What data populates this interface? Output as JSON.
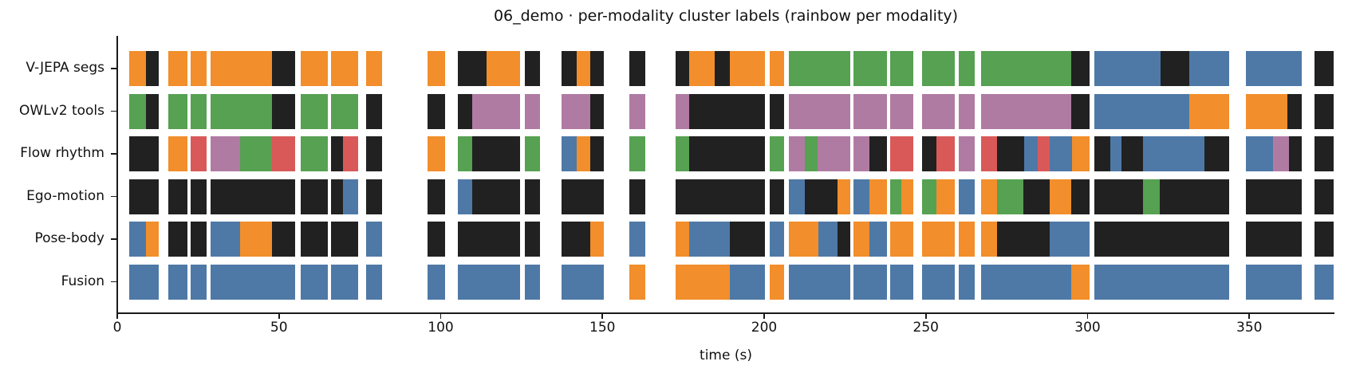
{
  "title": "06_demo · per-modality cluster labels (rainbow per modality)",
  "xlabel": "time (s)",
  "chart_data": {
    "type": "timeline",
    "xlim": [
      0,
      378
    ],
    "xticks": [
      0,
      50,
      100,
      150,
      200,
      250,
      300,
      350
    ],
    "grid": false,
    "palette": {
      "blue": "#4e79a7",
      "orange": "#f28e2b",
      "green": "#56a152",
      "red": "#d95959",
      "purple": "#b07ba3",
      "black": "#212121"
    },
    "rows": [
      {
        "label": "V-JEPA segs",
        "segments": [
          [
            3.6,
            8.9,
            "orange"
          ],
          [
            8.9,
            12.8,
            "black"
          ],
          [
            15.7,
            21.7,
            "orange"
          ],
          [
            22.7,
            27.7,
            "orange"
          ],
          [
            28.8,
            47.8,
            "orange"
          ],
          [
            47.8,
            55.0,
            "black"
          ],
          [
            56.6,
            65.1,
            "orange"
          ],
          [
            66.1,
            74.6,
            "orange"
          ],
          [
            76.9,
            81.9,
            "orange"
          ],
          [
            95.9,
            101.3,
            "orange"
          ],
          [
            105.2,
            114.3,
            "black"
          ],
          [
            114.3,
            124.6,
            "orange"
          ],
          [
            126.0,
            130.8,
            "black"
          ],
          [
            137.4,
            142.1,
            "black"
          ],
          [
            142.1,
            146.3,
            "orange"
          ],
          [
            146.3,
            150.4,
            "black"
          ],
          [
            158.3,
            163.2,
            "black"
          ],
          [
            172.6,
            176.9,
            "black"
          ],
          [
            176.9,
            184.7,
            "orange"
          ],
          [
            184.7,
            189.3,
            "black"
          ],
          [
            189.3,
            200.2,
            "orange"
          ],
          [
            201.7,
            206.2,
            "orange"
          ],
          [
            207.7,
            226.7,
            "green"
          ],
          [
            227.7,
            237.9,
            "green"
          ],
          [
            239.0,
            246.1,
            "green"
          ],
          [
            248.9,
            259.0,
            "green"
          ],
          [
            260.2,
            265.1,
            "green"
          ],
          [
            267.2,
            294.9,
            "green"
          ],
          [
            294.9,
            300.5,
            "black"
          ],
          [
            302.1,
            322.6,
            "blue"
          ],
          [
            322.6,
            331.4,
            "black"
          ],
          [
            331.4,
            343.8,
            "blue"
          ],
          [
            348.9,
            366.1,
            "blue"
          ],
          [
            370.2,
            376.0,
            "black"
          ]
        ]
      },
      {
        "label": "OWLv2 tools",
        "segments": [
          [
            3.6,
            8.9,
            "green"
          ],
          [
            8.9,
            12.8,
            "black"
          ],
          [
            15.7,
            21.7,
            "green"
          ],
          [
            22.7,
            27.7,
            "green"
          ],
          [
            28.8,
            47.8,
            "green"
          ],
          [
            47.8,
            55.0,
            "black"
          ],
          [
            56.6,
            65.1,
            "green"
          ],
          [
            66.1,
            74.6,
            "green"
          ],
          [
            76.9,
            81.9,
            "black"
          ],
          [
            95.9,
            101.3,
            "black"
          ],
          [
            105.2,
            109.8,
            "black"
          ],
          [
            109.8,
            124.6,
            "purple"
          ],
          [
            126.0,
            130.8,
            "purple"
          ],
          [
            137.4,
            146.3,
            "purple"
          ],
          [
            146.3,
            150.4,
            "black"
          ],
          [
            158.3,
            163.2,
            "purple"
          ],
          [
            172.6,
            176.9,
            "purple"
          ],
          [
            176.9,
            200.2,
            "black"
          ],
          [
            201.7,
            206.2,
            "black"
          ],
          [
            207.7,
            226.7,
            "purple"
          ],
          [
            227.7,
            237.9,
            "purple"
          ],
          [
            239.0,
            246.1,
            "purple"
          ],
          [
            248.9,
            259.0,
            "purple"
          ],
          [
            260.2,
            265.1,
            "purple"
          ],
          [
            267.2,
            294.9,
            "purple"
          ],
          [
            294.9,
            300.5,
            "black"
          ],
          [
            302.1,
            331.4,
            "blue"
          ],
          [
            331.4,
            343.8,
            "orange"
          ],
          [
            348.9,
            361.8,
            "orange"
          ],
          [
            361.8,
            366.1,
            "black"
          ],
          [
            370.2,
            376.0,
            "black"
          ]
        ]
      },
      {
        "label": "Flow rhythm",
        "segments": [
          [
            3.6,
            12.8,
            "black"
          ],
          [
            15.7,
            21.7,
            "orange"
          ],
          [
            22.7,
            27.7,
            "red"
          ],
          [
            28.8,
            38.0,
            "purple"
          ],
          [
            38.0,
            47.8,
            "green"
          ],
          [
            47.8,
            55.0,
            "red"
          ],
          [
            56.6,
            65.1,
            "green"
          ],
          [
            66.1,
            69.9,
            "black"
          ],
          [
            69.9,
            74.6,
            "red"
          ],
          [
            76.9,
            81.9,
            "black"
          ],
          [
            95.9,
            101.3,
            "orange"
          ],
          [
            105.2,
            109.8,
            "green"
          ],
          [
            109.8,
            124.6,
            "black"
          ],
          [
            126.0,
            130.8,
            "green"
          ],
          [
            137.4,
            142.1,
            "blue"
          ],
          [
            142.1,
            146.3,
            "orange"
          ],
          [
            146.3,
            150.4,
            "black"
          ],
          [
            158.3,
            163.2,
            "green"
          ],
          [
            172.6,
            176.9,
            "green"
          ],
          [
            176.9,
            200.2,
            "black"
          ],
          [
            201.7,
            206.2,
            "green"
          ],
          [
            207.7,
            212.7,
            "purple"
          ],
          [
            212.7,
            216.6,
            "green"
          ],
          [
            216.6,
            226.7,
            "purple"
          ],
          [
            227.7,
            232.5,
            "purple"
          ],
          [
            232.5,
            237.9,
            "black"
          ],
          [
            239.0,
            246.1,
            "red"
          ],
          [
            248.9,
            253.2,
            "black"
          ],
          [
            253.2,
            259.0,
            "red"
          ],
          [
            260.2,
            265.1,
            "purple"
          ],
          [
            267.2,
            272.1,
            "red"
          ],
          [
            272.1,
            280.4,
            "black"
          ],
          [
            280.4,
            284.7,
            "blue"
          ],
          [
            284.7,
            288.3,
            "red"
          ],
          [
            288.3,
            295.3,
            "blue"
          ],
          [
            295.3,
            300.5,
            "orange"
          ],
          [
            302.1,
            307.1,
            "black"
          ],
          [
            307.1,
            310.6,
            "blue"
          ],
          [
            310.6,
            317.2,
            "black"
          ],
          [
            317.2,
            336.1,
            "blue"
          ],
          [
            336.1,
            343.8,
            "black"
          ],
          [
            348.9,
            357.4,
            "blue"
          ],
          [
            357.4,
            362.3,
            "purple"
          ],
          [
            362.3,
            366.1,
            "black"
          ],
          [
            370.2,
            376.0,
            "black"
          ]
        ]
      },
      {
        "label": "Ego-motion",
        "segments": [
          [
            3.6,
            12.8,
            "black"
          ],
          [
            15.7,
            21.7,
            "black"
          ],
          [
            22.7,
            27.7,
            "black"
          ],
          [
            28.8,
            55.0,
            "black"
          ],
          [
            56.6,
            65.1,
            "black"
          ],
          [
            66.1,
            69.9,
            "black"
          ],
          [
            69.9,
            74.6,
            "blue"
          ],
          [
            76.9,
            81.9,
            "black"
          ],
          [
            95.9,
            101.3,
            "black"
          ],
          [
            105.2,
            109.8,
            "blue"
          ],
          [
            109.8,
            124.6,
            "black"
          ],
          [
            126.0,
            130.8,
            "black"
          ],
          [
            137.4,
            150.4,
            "black"
          ],
          [
            158.3,
            163.2,
            "black"
          ],
          [
            172.6,
            200.2,
            "black"
          ],
          [
            201.7,
            206.2,
            "black"
          ],
          [
            207.7,
            212.7,
            "blue"
          ],
          [
            212.7,
            222.6,
            "black"
          ],
          [
            222.6,
            226.7,
            "orange"
          ],
          [
            227.7,
            232.5,
            "blue"
          ],
          [
            232.5,
            237.9,
            "orange"
          ],
          [
            239.0,
            242.5,
            "green"
          ],
          [
            242.5,
            246.1,
            "orange"
          ],
          [
            248.9,
            253.2,
            "green"
          ],
          [
            253.2,
            259.0,
            "orange"
          ],
          [
            260.2,
            265.1,
            "blue"
          ],
          [
            267.2,
            272.1,
            "orange"
          ],
          [
            272.1,
            280.1,
            "green"
          ],
          [
            280.1,
            288.3,
            "black"
          ],
          [
            288.3,
            295.0,
            "orange"
          ],
          [
            295.0,
            300.5,
            "black"
          ],
          [
            302.1,
            317.2,
            "black"
          ],
          [
            317.2,
            322.3,
            "green"
          ],
          [
            322.3,
            343.8,
            "black"
          ],
          [
            348.9,
            366.1,
            "black"
          ],
          [
            370.2,
            376.0,
            "black"
          ]
        ]
      },
      {
        "label": "Pose-body",
        "segments": [
          [
            3.6,
            8.9,
            "blue"
          ],
          [
            8.9,
            12.8,
            "orange"
          ],
          [
            15.7,
            21.7,
            "black"
          ],
          [
            22.7,
            27.7,
            "black"
          ],
          [
            28.8,
            38.0,
            "blue"
          ],
          [
            38.0,
            47.8,
            "orange"
          ],
          [
            47.8,
            55.0,
            "black"
          ],
          [
            56.6,
            65.1,
            "black"
          ],
          [
            66.1,
            74.6,
            "black"
          ],
          [
            76.9,
            81.9,
            "blue"
          ],
          [
            95.9,
            101.3,
            "black"
          ],
          [
            105.2,
            124.6,
            "black"
          ],
          [
            126.0,
            130.8,
            "black"
          ],
          [
            137.4,
            146.3,
            "black"
          ],
          [
            146.3,
            150.4,
            "orange"
          ],
          [
            158.3,
            163.2,
            "blue"
          ],
          [
            172.6,
            176.9,
            "orange"
          ],
          [
            176.9,
            189.3,
            "blue"
          ],
          [
            189.3,
            200.2,
            "black"
          ],
          [
            201.7,
            206.2,
            "blue"
          ],
          [
            207.7,
            216.8,
            "orange"
          ],
          [
            216.8,
            222.6,
            "blue"
          ],
          [
            222.6,
            226.7,
            "black"
          ],
          [
            227.7,
            232.5,
            "orange"
          ],
          [
            232.5,
            237.9,
            "blue"
          ],
          [
            239.0,
            246.1,
            "orange"
          ],
          [
            248.9,
            259.0,
            "orange"
          ],
          [
            260.2,
            265.1,
            "orange"
          ],
          [
            267.2,
            272.1,
            "orange"
          ],
          [
            272.1,
            288.3,
            "black"
          ],
          [
            288.3,
            300.5,
            "blue"
          ],
          [
            302.1,
            343.8,
            "black"
          ],
          [
            348.9,
            366.1,
            "black"
          ],
          [
            370.2,
            376.0,
            "black"
          ]
        ]
      },
      {
        "label": "Fusion",
        "segments": [
          [
            3.6,
            12.8,
            "blue"
          ],
          [
            15.7,
            21.7,
            "blue"
          ],
          [
            22.7,
            27.7,
            "blue"
          ],
          [
            28.8,
            55.0,
            "blue"
          ],
          [
            56.6,
            65.1,
            "blue"
          ],
          [
            66.1,
            74.6,
            "blue"
          ],
          [
            76.9,
            81.9,
            "blue"
          ],
          [
            95.9,
            101.3,
            "blue"
          ],
          [
            105.2,
            124.6,
            "blue"
          ],
          [
            126.0,
            130.8,
            "blue"
          ],
          [
            137.4,
            150.4,
            "blue"
          ],
          [
            158.3,
            163.2,
            "orange"
          ],
          [
            172.6,
            189.3,
            "orange"
          ],
          [
            189.3,
            200.2,
            "blue"
          ],
          [
            201.7,
            206.2,
            "orange"
          ],
          [
            207.7,
            226.7,
            "blue"
          ],
          [
            227.7,
            237.9,
            "blue"
          ],
          [
            239.0,
            246.1,
            "blue"
          ],
          [
            248.9,
            259.0,
            "blue"
          ],
          [
            260.2,
            265.1,
            "blue"
          ],
          [
            267.2,
            294.9,
            "blue"
          ],
          [
            294.9,
            300.5,
            "orange"
          ],
          [
            302.1,
            343.8,
            "blue"
          ],
          [
            348.9,
            366.1,
            "blue"
          ],
          [
            370.2,
            376.0,
            "blue"
          ]
        ]
      }
    ]
  }
}
